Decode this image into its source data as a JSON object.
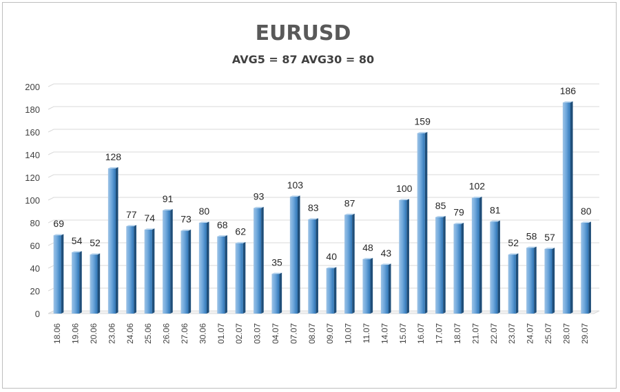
{
  "chart_data": {
    "type": "bar",
    "title": "EURUSD",
    "subtitle": "AVG5 = 87 AVG30 = 80",
    "xlabel": "",
    "ylabel": "",
    "ylim": [
      0,
      200
    ],
    "yticks": [
      0,
      20,
      40,
      60,
      80,
      100,
      120,
      140,
      160,
      180,
      200
    ],
    "grid": true,
    "legend": "none",
    "bar_color": "#5b9bd5",
    "categories": [
      "18.06",
      "19.06",
      "20.06",
      "23.06",
      "24.06",
      "25.06",
      "26.06",
      "27.06",
      "30.06",
      "01.07",
      "02.07",
      "03.07",
      "04.07",
      "07.07",
      "08.07",
      "09.07",
      "10.07",
      "11.07",
      "14.07",
      "15.07",
      "16.07",
      "17.07",
      "18.07",
      "21.07",
      "22.07",
      "23.07",
      "24.07",
      "25.07",
      "28.07",
      "29.07"
    ],
    "values": [
      69,
      54,
      52,
      128,
      77,
      74,
      91,
      73,
      80,
      68,
      62,
      93,
      35,
      103,
      83,
      40,
      87,
      48,
      43,
      100,
      159,
      85,
      79,
      102,
      81,
      52,
      58,
      57,
      186,
      80
    ]
  }
}
